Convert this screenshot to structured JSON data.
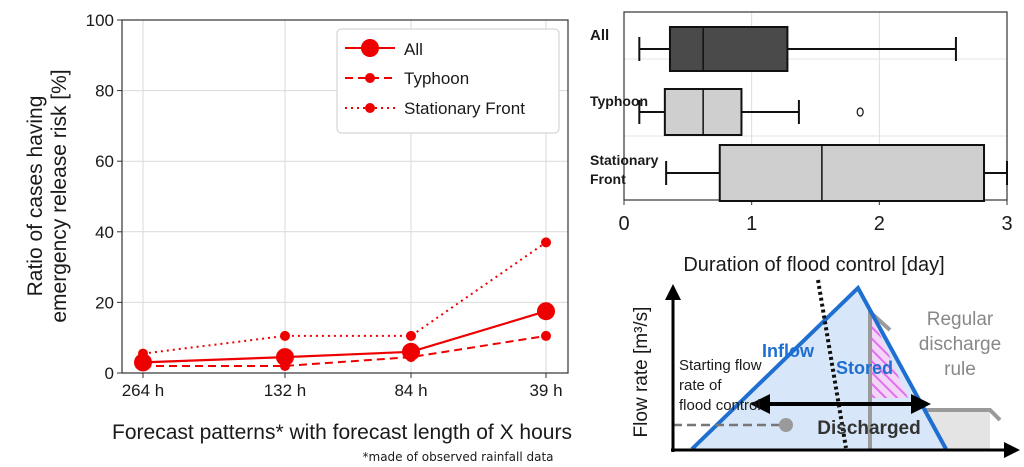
{
  "chart_data": [
    {
      "type": "line",
      "ylabel_line1": "Ratio of cases having",
      "ylabel_line2": "emergency release risk [%]",
      "xlabel": "Forecast patterns* with forecast length of X hours",
      "footnote": "*made of observed rainfall data",
      "categories": [
        "264 h",
        "132 h",
        "84 h",
        "39 h"
      ],
      "ylim": [
        0,
        100
      ],
      "yticks": [
        "0",
        "20",
        "40",
        "60",
        "80",
        "100"
      ],
      "grid": true,
      "legend_position": "top-right",
      "series": [
        {
          "name": "All",
          "style": "solid",
          "values": [
            3,
            4.5,
            6,
            17.5
          ]
        },
        {
          "name": "Typhoon",
          "style": "dashed",
          "values": [
            2,
            2,
            4.5,
            10.5
          ]
        },
        {
          "name": "Stationary Front",
          "style": "dotted",
          "values": [
            5.5,
            10.5,
            10.5,
            37
          ]
        }
      ],
      "color": "#ee0000"
    },
    {
      "type": "box",
      "xlabel": "Duration of flood control [day]",
      "xlim": [
        0,
        3
      ],
      "xticks": [
        "0",
        "1",
        "2",
        "3"
      ],
      "grid": true,
      "groups": [
        {
          "label": "All",
          "min": 0.12,
          "q1": 0.36,
          "median": 0.62,
          "q3": 1.28,
          "max": 2.6,
          "outliers": [],
          "fill": "#4a4a4a"
        },
        {
          "label": "Typhoon",
          "min": 0.12,
          "q1": 0.32,
          "median": 0.62,
          "q3": 0.92,
          "max": 1.37,
          "outliers": [
            1.85
          ],
          "fill": "#cfcfcf"
        },
        {
          "label_line1": "Stationary",
          "label_line2": "Front",
          "min": 0.33,
          "q1": 0.75,
          "median": 1.55,
          "q3": 2.82,
          "max": 3.0,
          "outliers": [],
          "fill": "#cfcfcf"
        }
      ]
    }
  ],
  "diagram": {
    "y_axis_label": "Flow rate [m³/s]",
    "inflow_label": "Inflow",
    "stored_label": "Stored",
    "regular_label_line1": "Regular",
    "regular_label_line2": "discharge",
    "regular_label_line3": "rule",
    "starting_line1": "Starting flow",
    "starting_line2": "rate of",
    "starting_line3": "flood control",
    "discharged_label": "Discharged",
    "colors": {
      "inflow": "#1f6fd1",
      "regular": "#9a9a9a",
      "stored_hatch": "#e070f0"
    }
  }
}
